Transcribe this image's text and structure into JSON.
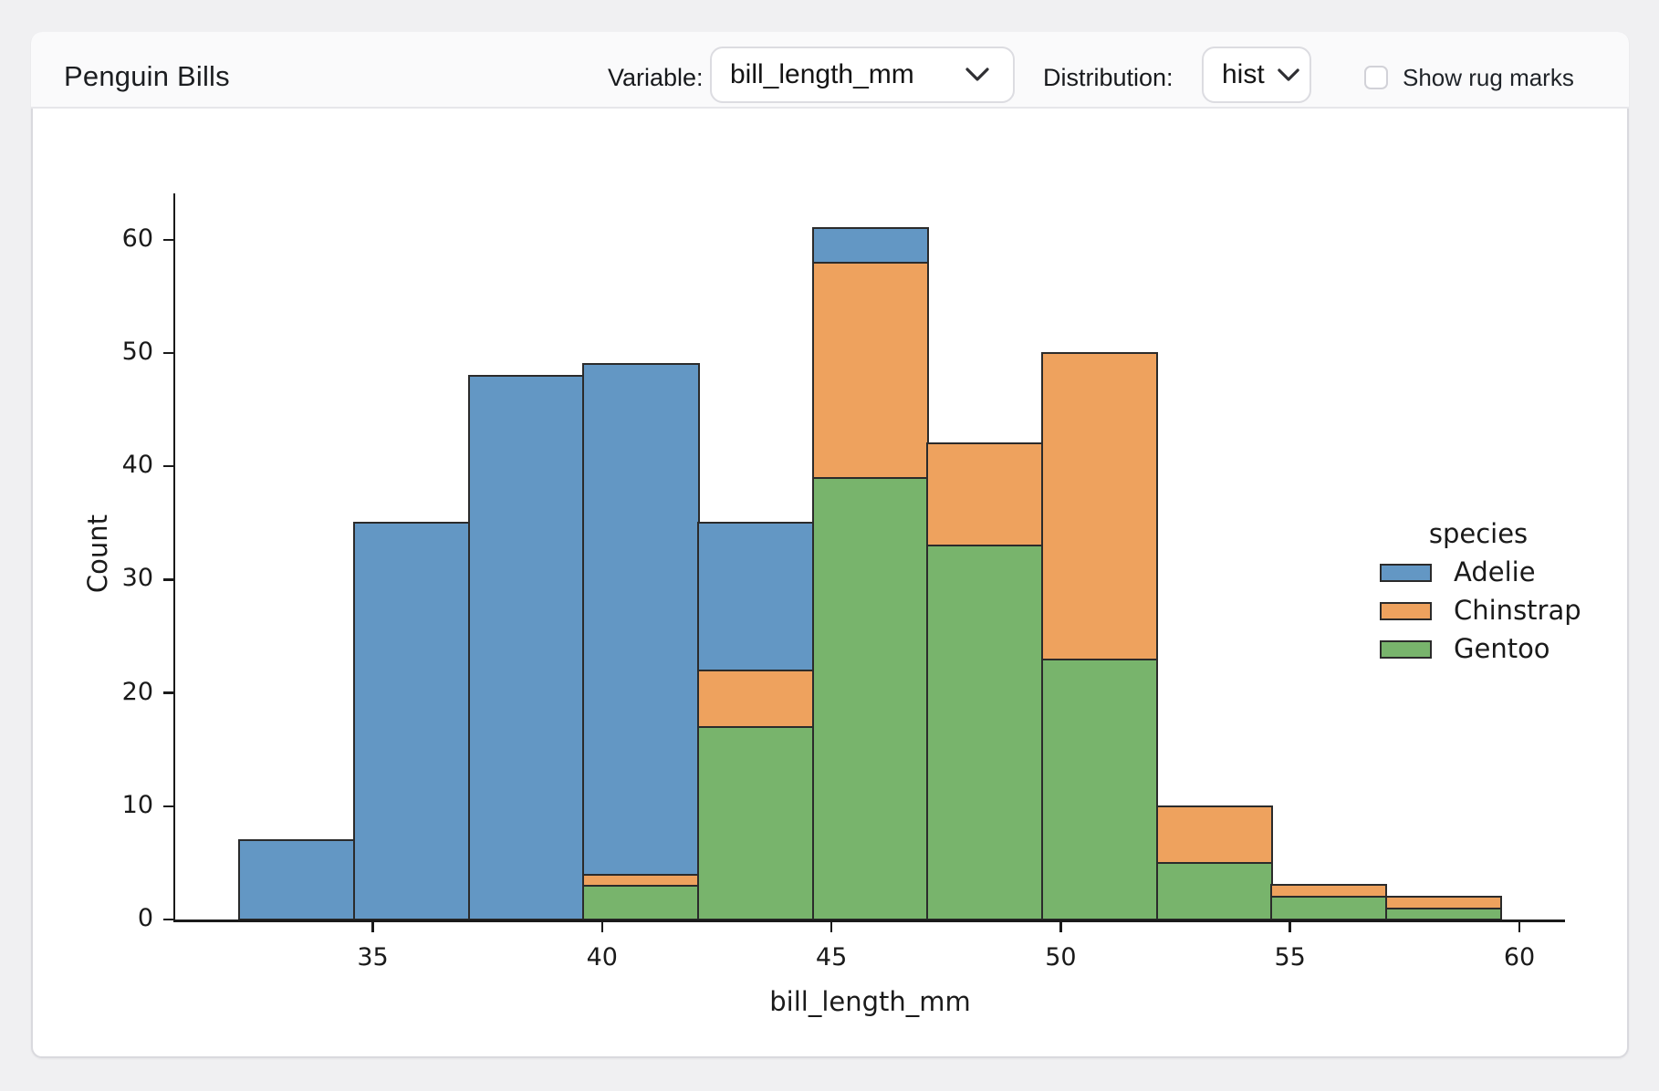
{
  "header": {
    "title": "Penguin Bills",
    "variable_label": "Variable:",
    "variable_value": "bill_length_mm",
    "distribution_label": "Distribution:",
    "distribution_value": "hist",
    "rug_label": "Show rug marks",
    "rug_checked": false
  },
  "colors": {
    "adelie": "#6397c4",
    "chinstrap": "#eea25e",
    "gentoo": "#78b46c",
    "bar_edge": "#2b2b2b",
    "card_border": "#d9d9de",
    "page_bg": "#f0f0f2"
  },
  "chart_data": {
    "type": "bar",
    "subtype": "stacked-histogram",
    "title": "",
    "xlabel": "bill_length_mm",
    "ylabel": "Count",
    "bin_edges": [
      32.1,
      34.6,
      37.1,
      39.6,
      42.1,
      44.6,
      47.1,
      49.6,
      52.1,
      54.6,
      57.1,
      59.6
    ],
    "series": [
      {
        "name": "Adelie",
        "color": "#6397c4",
        "values": [
          7,
          35,
          48,
          45,
          13,
          3,
          0,
          0,
          0,
          0,
          0
        ]
      },
      {
        "name": "Chinstrap",
        "color": "#eea25e",
        "values": [
          0,
          0,
          0,
          1,
          5,
          19,
          9,
          27,
          5,
          1,
          1
        ]
      },
      {
        "name": "Gentoo",
        "color": "#78b46c",
        "values": [
          0,
          0,
          0,
          3,
          17,
          39,
          33,
          23,
          5,
          2,
          1
        ]
      }
    ],
    "stack_order_bottom_to_top": [
      "Gentoo",
      "Chinstrap",
      "Adelie"
    ],
    "bin_totals": [
      7,
      35,
      48,
      49,
      35,
      61,
      42,
      50,
      10,
      3,
      2
    ],
    "x_ticks": [
      35,
      40,
      45,
      50,
      55,
      60
    ],
    "y_ticks": [
      0,
      10,
      20,
      30,
      40,
      50,
      60
    ],
    "xlim": [
      30.725,
      60.975
    ],
    "ylim": [
      0,
      64.05
    ],
    "grid": false,
    "legend": {
      "title": "species",
      "entries": [
        "Adelie",
        "Chinstrap",
        "Gentoo"
      ],
      "position": "upper-right-inside"
    }
  }
}
